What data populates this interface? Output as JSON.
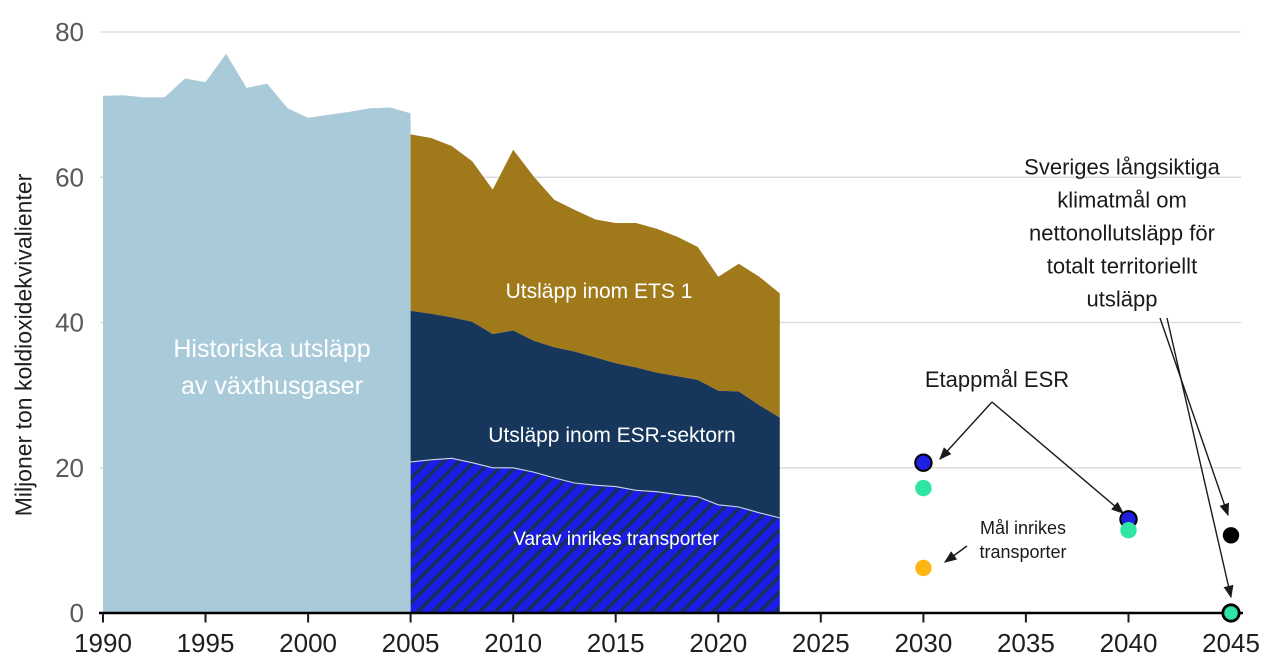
{
  "chart_data": {
    "type": "area",
    "title": "",
    "xlabel": "",
    "ylabel": "Miljoner ton koldioxidekvivalienter",
    "ylim": [
      0,
      80
    ],
    "xlim": [
      1990,
      2045
    ],
    "yticks": [
      0,
      20,
      40,
      60,
      80
    ],
    "xticks": [
      1990,
      1995,
      2000,
      2005,
      2010,
      2015,
      2020,
      2025,
      2030,
      2035,
      2040,
      2045
    ],
    "grid": "horizontal",
    "gridline_color": "#D9D9D9",
    "axis_color": "#000000",
    "series": [
      {
        "id": "historical-total",
        "label": "Historiska utsläpp av växthusgaser",
        "label_lines": [
          "Historiska utsläpp",
          "av växthusgaser"
        ],
        "color": "#A9CBD9",
        "years": [
          1990,
          1991,
          1992,
          1993,
          1994,
          1995,
          1996,
          1997,
          1998,
          1999,
          2000,
          2001,
          2002,
          2003,
          2004,
          2005
        ],
        "values": [
          71.2,
          71.3,
          71.0,
          71.0,
          73.6,
          73.1,
          77.0,
          72.3,
          72.9,
          69.5,
          68.2,
          68.6,
          69.0,
          69.5,
          69.6,
          68.8
        ]
      },
      {
        "id": "ets1",
        "label": "Utsläpp inom ETS 1",
        "label_lines": [
          "Utsläpp inom ETS 1"
        ],
        "color": "#A0791B",
        "stack_note": "band from total (ETS1+ESR) down to ESR line",
        "years": [
          2005,
          2006,
          2007,
          2008,
          2009,
          2010,
          2011,
          2012,
          2013,
          2014,
          2015,
          2016,
          2017,
          2018,
          2019,
          2020,
          2021,
          2022,
          2023
        ],
        "values": [
          65.9,
          65.4,
          64.3,
          62.2,
          58.3,
          63.8,
          60.1,
          56.9,
          55.5,
          54.2,
          53.7,
          53.7,
          52.9,
          51.8,
          50.4,
          46.3,
          48.1,
          46.3,
          44.0
        ]
      },
      {
        "id": "esr",
        "label": "Utsläpp inom ESR-sektorn",
        "label_lines": [
          "Utsläpp inom ESR-sektorn"
        ],
        "color": "#16365C",
        "stack_note": "band from ESR line down to transport line",
        "years": [
          2005,
          2006,
          2007,
          2008,
          2009,
          2010,
          2011,
          2012,
          2013,
          2014,
          2015,
          2016,
          2017,
          2018,
          2019,
          2020,
          2021,
          2022,
          2023
        ],
        "values": [
          41.6,
          41.2,
          40.7,
          40.1,
          38.4,
          38.9,
          37.5,
          36.6,
          36.0,
          35.2,
          34.4,
          33.8,
          33.1,
          32.6,
          32.1,
          30.6,
          30.5,
          28.6,
          26.9
        ]
      },
      {
        "id": "transport",
        "label": "Varav inrikes transporter",
        "label_lines": [
          "Varav inrikes transporter"
        ],
        "color": "#1C1CE6",
        "hatch": true,
        "hatch_stripe_color": "#16305C",
        "stack_note": "area from transport line down to zero",
        "years": [
          2005,
          2006,
          2007,
          2008,
          2009,
          2010,
          2011,
          2012,
          2013,
          2014,
          2015,
          2016,
          2017,
          2018,
          2019,
          2020,
          2021,
          2022,
          2023
        ],
        "values": [
          20.8,
          21.1,
          21.3,
          20.7,
          20.0,
          20.0,
          19.4,
          18.6,
          17.9,
          17.6,
          17.4,
          16.9,
          16.7,
          16.3,
          16.0,
          14.9,
          14.6,
          13.8,
          13.1
        ]
      }
    ],
    "markers": [
      {
        "year": 2030,
        "value": 20.7,
        "color": "#1F1FE0",
        "ring": "#000000",
        "ring_width": 2,
        "group": "Etappmål ESR"
      },
      {
        "year": 2030,
        "value": 17.2,
        "color": "#2EE5A4",
        "ring": null,
        "ring_width": 0,
        "group": ""
      },
      {
        "year": 2030,
        "value": 6.2,
        "color": "#FFB514",
        "ring": null,
        "ring_width": 0,
        "group": "Mål inrikes transporter"
      },
      {
        "year": 2040,
        "value": 12.9,
        "color": "#1F1FE0",
        "ring": "#000000",
        "ring_width": 2,
        "group": "Etappmål ESR"
      },
      {
        "year": 2040,
        "value": 11.4,
        "color": "#2EE5A4",
        "ring": null,
        "ring_width": 0,
        "group": ""
      },
      {
        "year": 2045,
        "value": 10.7,
        "color": "#000000",
        "ring": null,
        "ring_width": 0,
        "group": "Sveriges långsiktiga klimatmål"
      },
      {
        "year": 2045,
        "value": 0,
        "color": "#2EE5A4",
        "ring": "#000000",
        "ring_width": 2.8,
        "group": "Sveriges långsiktiga klimatmål"
      }
    ],
    "annotations": {
      "etappmal": {
        "lines": [
          "Etappmål ESR"
        ]
      },
      "mal_inrikes": {
        "lines": [
          "Mål inrikes",
          "transporter"
        ]
      },
      "langsiktiga": {
        "lines": [
          "Sveriges långsiktiga",
          "klimatmål om",
          "nettonollutsläpp för",
          "totalt territoriellt",
          "utsläpp"
        ]
      }
    }
  }
}
